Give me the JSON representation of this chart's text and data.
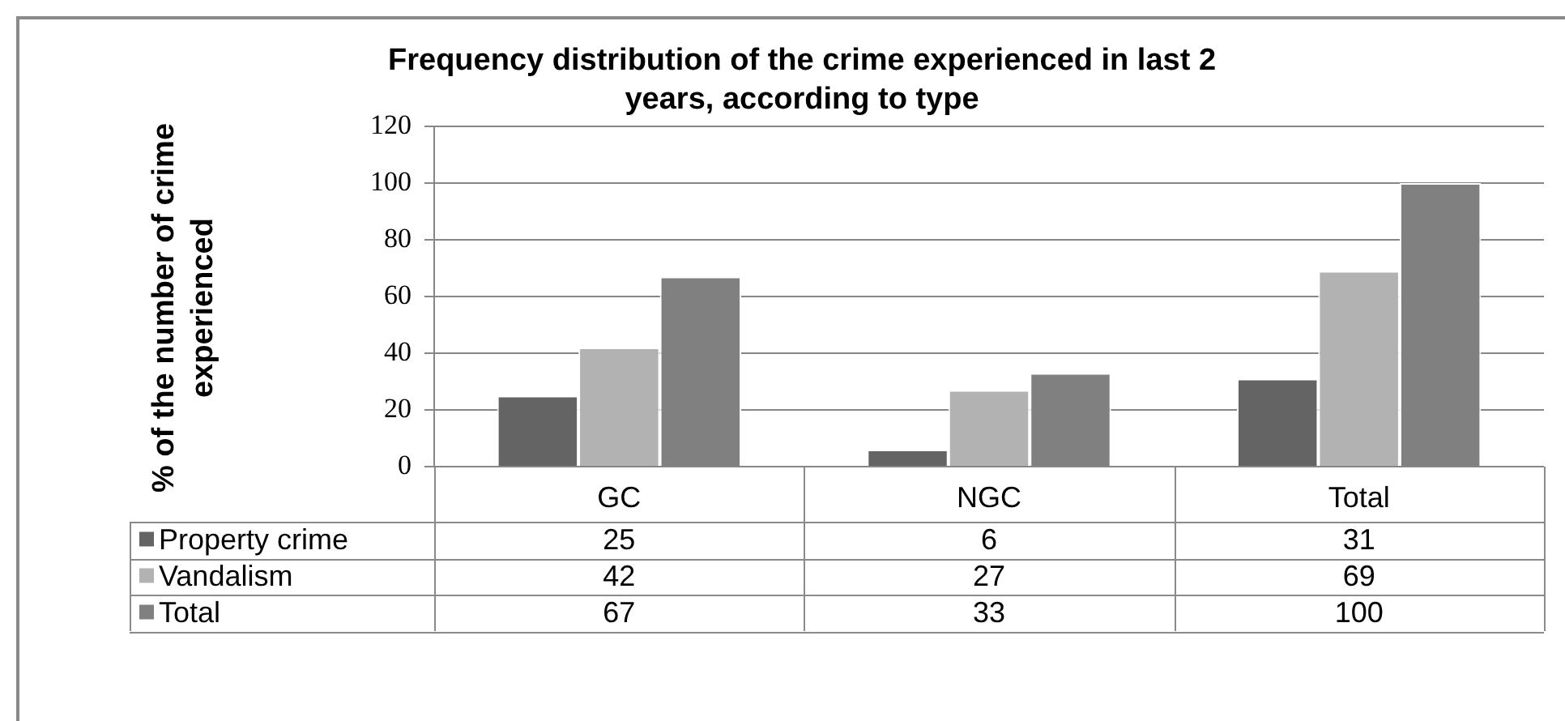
{
  "chart_data": {
    "type": "bar",
    "title": "Frequency distribution of the crime experienced in last 2 years, according to type",
    "ylabel": "% of the number of crime experienced",
    "categories": [
      "GC",
      "NGC",
      "Total"
    ],
    "series": [
      {
        "name": "Property crime",
        "color": "#646464",
        "values": [
          25,
          6,
          31
        ]
      },
      {
        "name": "Vandalism",
        "color": "#b2b2b2",
        "values": [
          42,
          27,
          69
        ]
      },
      {
        "name": "Total",
        "color": "#808080",
        "values": [
          67,
          33,
          100
        ]
      }
    ],
    "ylim": [
      0,
      120
    ],
    "yticks": [
      0,
      20,
      40,
      60,
      80,
      100,
      120
    ],
    "grid": "y",
    "data_labels": true,
    "legend": "bottom"
  }
}
